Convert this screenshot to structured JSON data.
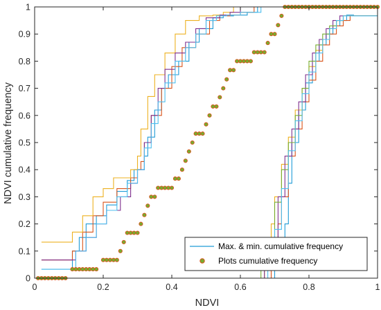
{
  "chart_data": {
    "type": "line",
    "xlabel": "NDVI",
    "ylabel": "NDVI cumulative frequency",
    "xlim": [
      0,
      1
    ],
    "ylim": [
      0,
      1
    ],
    "xticks": [
      "0",
      "0.2",
      "0.4",
      "0.6",
      "0.8",
      "1"
    ],
    "yticks": [
      "0",
      "0.1",
      "0.2",
      "0.3",
      "0.4",
      "0.5",
      "0.6",
      "0.7",
      "0.8",
      "0.9",
      "1"
    ],
    "grid": false,
    "legend_position": "bottom-right",
    "legend": [
      {
        "label": "Max. & min. cumulative frequency",
        "marker": "line",
        "color": "#1f9bd7"
      },
      {
        "label": "Plots cumulative frequency",
        "marker": "dot",
        "color": "#77ac30",
        "edge": "#d95319"
      }
    ],
    "series": [
      {
        "color": "#1f9bd7",
        "x": [
          0.02,
          0.1,
          0.11,
          0.13,
          0.15,
          0.18,
          0.21,
          0.24,
          0.27,
          0.29,
          0.32,
          0.33,
          0.35,
          0.37,
          0.39,
          0.42,
          0.45,
          0.48,
          0.52,
          0.55,
          0.58,
          0.62,
          0.65
        ],
        "y": [
          0.033,
          0.033,
          0.1,
          0.15,
          0.2,
          0.23,
          0.27,
          0.32,
          0.36,
          0.4,
          0.45,
          0.52,
          0.62,
          0.7,
          0.75,
          0.8,
          0.87,
          0.92,
          0.96,
          0.967,
          0.97,
          0.98,
          1.0
        ]
      },
      {
        "color": "#d95319",
        "x": [
          0.02,
          0.1,
          0.11,
          0.14,
          0.17,
          0.2,
          0.24,
          0.28,
          0.3,
          0.31,
          0.32,
          0.34,
          0.37,
          0.4,
          0.43,
          0.47,
          0.51,
          0.54,
          0.57,
          0.6,
          0.64
        ],
        "y": [
          0.067,
          0.067,
          0.1,
          0.17,
          0.23,
          0.28,
          0.33,
          0.37,
          0.4,
          0.43,
          0.5,
          0.6,
          0.7,
          0.78,
          0.85,
          0.9,
          0.95,
          0.967,
          0.97,
          0.98,
          1.0
        ]
      },
      {
        "color": "#edb120",
        "x": [
          0.02,
          0.1,
          0.11,
          0.14,
          0.17,
          0.2,
          0.23,
          0.26,
          0.28,
          0.3,
          0.31,
          0.33,
          0.35,
          0.38,
          0.41,
          0.44,
          0.48,
          0.52,
          0.55,
          0.58
        ],
        "y": [
          0.133,
          0.133,
          0.17,
          0.23,
          0.3,
          0.33,
          0.37,
          0.37,
          0.4,
          0.45,
          0.55,
          0.67,
          0.75,
          0.83,
          0.9,
          0.95,
          0.967,
          0.97,
          0.98,
          1.0
        ]
      },
      {
        "color": "#7e2f8e",
        "x": [
          0.02,
          0.1,
          0.12,
          0.15,
          0.18,
          0.21,
          0.25,
          0.28,
          0.3,
          0.32,
          0.34,
          0.36,
          0.38,
          0.41,
          0.44,
          0.47,
          0.5,
          0.54,
          0.57,
          0.6
        ],
        "y": [
          0.067,
          0.067,
          0.1,
          0.15,
          0.2,
          0.25,
          0.3,
          0.35,
          0.4,
          0.5,
          0.6,
          0.7,
          0.77,
          0.83,
          0.87,
          0.92,
          0.96,
          0.97,
          0.98,
          1.0
        ]
      },
      {
        "color": "#4dbeee",
        "x": [
          0.02,
          0.1,
          0.12,
          0.15,
          0.18,
          0.21,
          0.24,
          0.27,
          0.3,
          0.32,
          0.34,
          0.36,
          0.38,
          0.41,
          0.44,
          0.47,
          0.5,
          0.53,
          0.56,
          0.6,
          0.66
        ],
        "y": [
          0.033,
          0.033,
          0.1,
          0.15,
          0.2,
          0.25,
          0.3,
          0.35,
          0.4,
          0.48,
          0.57,
          0.65,
          0.72,
          0.8,
          0.85,
          0.9,
          0.95,
          0.967,
          0.97,
          0.98,
          1.0
        ]
      },
      {
        "color": "#1f9bd7",
        "x": [
          0.02,
          0.69,
          0.7,
          0.71,
          0.72,
          0.73,
          0.74,
          0.75,
          0.77,
          0.79,
          0.81,
          0.83,
          0.85,
          0.87,
          0.89,
          0.91,
          0.93,
          0.95,
          1.0
        ],
        "y": [
          0,
          0,
          0.03,
          0.06,
          0.1,
          0.2,
          0.35,
          0.5,
          0.62,
          0.72,
          0.8,
          0.86,
          0.9,
          0.93,
          0.95,
          0.97,
          0.967,
          0.967,
          0.967
        ]
      },
      {
        "color": "#d95319",
        "x": [
          0.02,
          0.68,
          0.69,
          0.7,
          0.71,
          0.72,
          0.74,
          0.76,
          0.78,
          0.8,
          0.82,
          0.84,
          0.86,
          0.88,
          0.9,
          0.92,
          0.94,
          1.0
        ],
        "y": [
          0,
          0,
          0.03,
          0.1,
          0.2,
          0.3,
          0.45,
          0.55,
          0.65,
          0.73,
          0.8,
          0.86,
          0.9,
          0.93,
          0.95,
          0.967,
          0.967,
          0.967
        ]
      },
      {
        "color": "#edb120",
        "x": [
          0.02,
          0.66,
          0.67,
          0.68,
          0.69,
          0.7,
          0.72,
          0.74,
          0.76,
          0.78,
          0.8,
          0.82,
          0.84,
          0.86,
          0.88,
          0.9,
          0.92,
          1.0
        ],
        "y": [
          0,
          0,
          0.03,
          0.1,
          0.2,
          0.3,
          0.42,
          0.52,
          0.62,
          0.7,
          0.78,
          0.84,
          0.88,
          0.92,
          0.95,
          0.967,
          0.967,
          0.967
        ]
      },
      {
        "color": "#7e2f8e",
        "x": [
          0.02,
          0.66,
          0.67,
          0.69,
          0.71,
          0.73,
          0.75,
          0.77,
          0.79,
          0.81,
          0.83,
          0.85,
          0.87,
          0.89,
          0.91,
          0.93,
          1.0
        ],
        "y": [
          0,
          0,
          0.05,
          0.15,
          0.3,
          0.45,
          0.55,
          0.65,
          0.75,
          0.83,
          0.88,
          0.92,
          0.95,
          0.967,
          0.967,
          0.967,
          0.967
        ]
      },
      {
        "color": "#77ac30",
        "x": [
          0.02,
          0.65,
          0.66,
          0.68,
          0.7,
          0.72,
          0.74,
          0.76,
          0.78,
          0.8,
          0.82,
          0.84,
          0.86,
          0.88,
          0.9,
          0.92,
          0.94,
          1.0
        ],
        "y": [
          0,
          0,
          0.05,
          0.15,
          0.28,
          0.4,
          0.5,
          0.6,
          0.7,
          0.8,
          0.86,
          0.9,
          0.93,
          0.95,
          0.967,
          0.967,
          0.967,
          0.967
        ]
      },
      {
        "color": "#4dbeee",
        "x": [
          0.02,
          0.67,
          0.68,
          0.7,
          0.72,
          0.74,
          0.76,
          0.78,
          0.8,
          0.82,
          0.84,
          0.86,
          0.88,
          0.9,
          0.92,
          1.0
        ],
        "y": [
          0,
          0,
          0.05,
          0.18,
          0.33,
          0.47,
          0.58,
          0.68,
          0.76,
          0.83,
          0.88,
          0.92,
          0.95,
          0.967,
          0.967,
          0.967
        ]
      }
    ],
    "points": {
      "x": [
        0.01,
        0.02,
        0.03,
        0.04,
        0.05,
        0.06,
        0.07,
        0.08,
        0.09,
        0.11,
        0.12,
        0.13,
        0.14,
        0.15,
        0.16,
        0.17,
        0.18,
        0.2,
        0.21,
        0.22,
        0.23,
        0.24,
        0.25,
        0.26,
        0.27,
        0.28,
        0.29,
        0.3,
        0.31,
        0.32,
        0.33,
        0.34,
        0.35,
        0.36,
        0.37,
        0.38,
        0.39,
        0.4,
        0.41,
        0.42,
        0.43,
        0.44,
        0.45,
        0.46,
        0.47,
        0.48,
        0.49,
        0.5,
        0.51,
        0.52,
        0.53,
        0.54,
        0.55,
        0.56,
        0.57,
        0.58,
        0.59,
        0.6,
        0.61,
        0.62,
        0.63,
        0.64,
        0.65,
        0.66,
        0.67,
        0.68,
        0.69,
        0.7,
        0.71,
        0.72,
        0.73,
        0.74,
        0.75,
        0.76,
        0.77,
        0.78,
        0.79,
        0.8,
        0.81,
        0.82,
        0.83,
        0.84,
        0.85,
        0.86,
        0.87,
        0.88,
        0.89,
        0.9,
        0.91,
        0.92,
        0.93,
        0.94,
        0.95,
        0.96,
        0.97,
        0.98,
        0.99,
        1.0
      ],
      "y": [
        0,
        0,
        0,
        0,
        0,
        0,
        0,
        0,
        0,
        0.033,
        0.033,
        0.033,
        0.033,
        0.033,
        0.033,
        0.033,
        0.033,
        0.067,
        0.067,
        0.067,
        0.067,
        0.067,
        0.1,
        0.133,
        0.167,
        0.167,
        0.167,
        0.167,
        0.2,
        0.233,
        0.267,
        0.3,
        0.3,
        0.333,
        0.333,
        0.333,
        0.333,
        0.333,
        0.367,
        0.367,
        0.4,
        0.433,
        0.467,
        0.5,
        0.533,
        0.533,
        0.533,
        0.567,
        0.6,
        0.633,
        0.633,
        0.667,
        0.7,
        0.733,
        0.767,
        0.767,
        0.8,
        0.8,
        0.8,
        0.8,
        0.8,
        0.833,
        0.833,
        0.833,
        0.833,
        0.867,
        0.9,
        0.9,
        0.933,
        0.967,
        1.0,
        1.0,
        1.0,
        1.0,
        1.0,
        1.0,
        1.0,
        1.0,
        1.0,
        1.0,
        1.0,
        1.0,
        1.0,
        1.0,
        1.0,
        1.0,
        1.0,
        1.0,
        1.0,
        1.0,
        1.0,
        1.0,
        1.0,
        1.0,
        1.0,
        1.0,
        1.0,
        1.0
      ]
    }
  }
}
